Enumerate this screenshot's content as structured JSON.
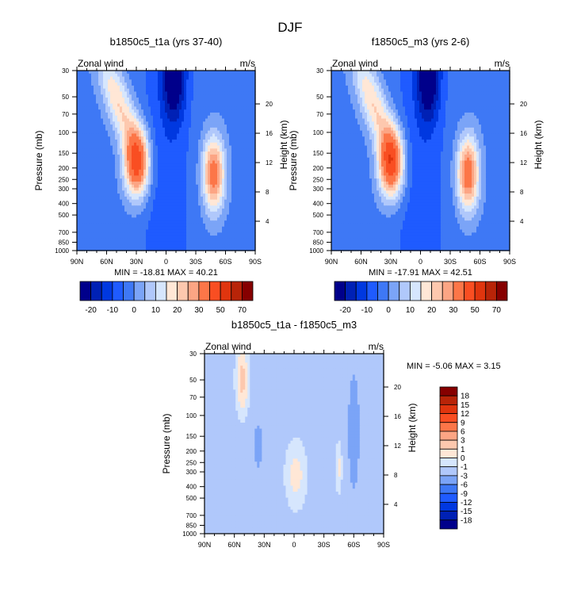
{
  "figure_title": "DJF",
  "chart_data": [
    {
      "type": "heatmap",
      "subtype": "filled-contour",
      "title": "b1850c5_t1a (yrs 37-40)",
      "left_string": "Zonal wind",
      "right_string": "m/s",
      "xlabel": "",
      "ylabel": "Pressure (mb)",
      "y2label": "Height (km)",
      "x_ticks": [
        "90N",
        "60N",
        "30N",
        "0",
        "30S",
        "60S",
        "90S"
      ],
      "x_range": [
        90,
        -90
      ],
      "y_ticks": [
        30,
        50,
        70,
        100,
        150,
        200,
        250,
        300,
        400,
        500,
        700,
        850,
        1000
      ],
      "y_range_mb": [
        1000,
        30
      ],
      "y2_ticks": [
        4,
        8,
        12,
        16,
        20
      ],
      "min_max_label": "MIN = -18.81  MAX =  40.21",
      "min": -18.81,
      "max": 40.21,
      "colorbar": {
        "orientation": "horizontal",
        "labels": [
          "-20",
          "-10",
          "0",
          "10",
          "20",
          "30",
          "50",
          "70"
        ],
        "levels": [
          -25,
          -20,
          -15,
          -10,
          -5,
          0,
          5,
          10,
          15,
          20,
          25,
          30,
          40,
          50,
          60,
          70
        ],
        "colors": [
          "#00008b",
          "#0021b5",
          "#0038e0",
          "#1f5bff",
          "#3e78f5",
          "#7ba4f7",
          "#b0c8fb",
          "#d6e6fd",
          "#ffe7d6",
          "#fdc8ae",
          "#fca584",
          "#fc7648",
          "#f94e22",
          "#e0350e",
          "#b82408",
          "#860000"
        ]
      },
      "features": [
        {
          "name": "NH subtropical jet",
          "lat": 30,
          "p_mb": 200,
          "peak_ms": 40
        },
        {
          "name": "SH midlatitude jet",
          "lat": -48,
          "p_mb": 250,
          "peak_ms": 32
        },
        {
          "name": "Tropical easterlies",
          "lat": -8,
          "p_mb": 30,
          "min_ms": -19
        }
      ]
    },
    {
      "type": "heatmap",
      "subtype": "filled-contour",
      "title": "f1850c5_m3 (yrs 2-6)",
      "left_string": "Zonal wind",
      "right_string": "m/s",
      "xlabel": "",
      "ylabel": "Pressure (mb)",
      "y2label": "Height (km)",
      "x_ticks": [
        "90N",
        "60N",
        "30N",
        "0",
        "30S",
        "60S",
        "90S"
      ],
      "x_range": [
        90,
        -90
      ],
      "y_ticks": [
        30,
        50,
        70,
        100,
        150,
        200,
        250,
        300,
        400,
        500,
        700,
        850,
        1000
      ],
      "y_range_mb": [
        1000,
        30
      ],
      "y2_ticks": [
        4,
        8,
        12,
        16,
        20
      ],
      "min_max_label": "MIN = -17.91  MAX =  42.51",
      "min": -17.91,
      "max": 42.51,
      "colorbar": {
        "orientation": "horizontal",
        "labels": [
          "-20",
          "-10",
          "0",
          "10",
          "20",
          "30",
          "50",
          "70"
        ],
        "levels": [
          -25,
          -20,
          -15,
          -10,
          -5,
          0,
          5,
          10,
          15,
          20,
          25,
          30,
          40,
          50,
          60,
          70
        ],
        "colors": [
          "#00008b",
          "#0021b5",
          "#0038e0",
          "#1f5bff",
          "#3e78f5",
          "#7ba4f7",
          "#b0c8fb",
          "#d6e6fd",
          "#ffe7d6",
          "#fdc8ae",
          "#fca584",
          "#fc7648",
          "#f94e22",
          "#e0350e",
          "#b82408",
          "#860000"
        ]
      },
      "features": [
        {
          "name": "NH subtropical jet",
          "lat": 30,
          "p_mb": 200,
          "peak_ms": 42
        },
        {
          "name": "SH midlatitude jet",
          "lat": -50,
          "p_mb": 250,
          "peak_ms": 33
        },
        {
          "name": "Tropical easterlies",
          "lat": -8,
          "p_mb": 30,
          "min_ms": -18
        }
      ]
    },
    {
      "type": "heatmap",
      "subtype": "filled-contour",
      "title": "b1850c5_t1a - f1850c5_m3",
      "left_string": "Zonal wind",
      "right_string": "m/s",
      "xlabel": "",
      "ylabel": "Pressure (mb)",
      "y2label": "Height (km)",
      "x_ticks": [
        "90N",
        "60N",
        "30N",
        "0",
        "30S",
        "60S",
        "90S"
      ],
      "x_range": [
        90,
        -90
      ],
      "y_ticks": [
        30,
        50,
        70,
        100,
        150,
        200,
        250,
        300,
        400,
        500,
        700,
        850,
        1000
      ],
      "y_range_mb": [
        1000,
        30
      ],
      "y2_ticks": [
        4,
        8,
        12,
        16,
        20
      ],
      "min_max_label": "MIN =  -5.06  MAX =   3.15",
      "min": -5.06,
      "max": 3.15,
      "colorbar": {
        "orientation": "vertical",
        "labels": [
          "18",
          "15",
          "12",
          "9",
          "6",
          "3",
          "1",
          "0",
          "-1",
          "-3",
          "-6",
          "-9",
          "-12",
          "-15",
          "-18"
        ],
        "colors_top_to_bottom": [
          "#860000",
          "#b82408",
          "#e0350e",
          "#f94e22",
          "#fc7648",
          "#fca584",
          "#fdc8ae",
          "#ffe7d6",
          "#d6e6fd",
          "#b0c8fb",
          "#7ba4f7",
          "#3e78f5",
          "#1f5bff",
          "#0038e0",
          "#0021b5",
          "#00008b"
        ]
      }
    }
  ]
}
